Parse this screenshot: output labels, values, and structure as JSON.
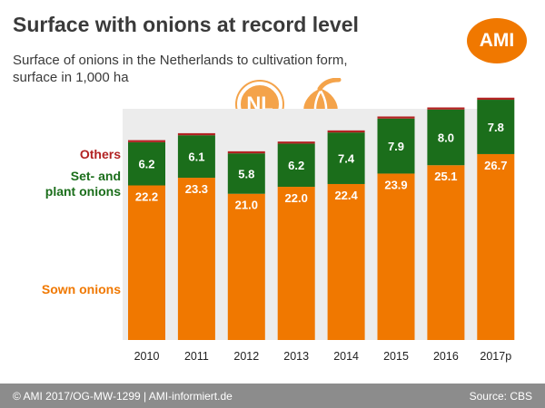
{
  "header": {
    "title": "Surface with onions at record level",
    "subtitle": "Surface of onions in the Netherlands to cultivation form, surface in 1,000 ha",
    "logo_text": "AMI",
    "badge_text": "NL",
    "onion_icon": "onion-icon"
  },
  "footer": {
    "left": "© AMI 2017/OG-MW-1299 | AMI-informiert.de",
    "right": "Source: CBS"
  },
  "colors": {
    "sown": "#f07800",
    "set_plant": "#1b6e1b",
    "others": "#b22222",
    "plot_bg": "#ececec"
  },
  "chart_data": {
    "type": "bar",
    "stacked": true,
    "title": "Surface with onions at record level",
    "subtitle": "Surface of onions in the Netherlands to cultivation form, surface in 1,000 ha",
    "categories": [
      "2010",
      "2011",
      "2012",
      "2013",
      "2014",
      "2015",
      "2016",
      "2017p"
    ],
    "series": [
      {
        "name": "Sown onions",
        "values": [
          22.2,
          23.3,
          21.0,
          22.0,
          22.4,
          23.9,
          25.1,
          26.7
        ],
        "labels": [
          "22.2",
          "23.3",
          "21.0",
          "22.0",
          "22.4",
          "23.9",
          "25.1",
          "26.7"
        ]
      },
      {
        "name": "Set- and plant onions",
        "values": [
          6.2,
          6.1,
          5.8,
          6.2,
          7.4,
          7.9,
          8.0,
          7.8
        ],
        "labels": [
          "6.2",
          "6.1",
          "5.8",
          "6.2",
          "7.4",
          "7.9",
          "8.0",
          "7.8"
        ]
      },
      {
        "name": "Others",
        "values": [
          0.3,
          0.3,
          0.3,
          0.3,
          0.3,
          0.3,
          0.3,
          0.3
        ]
      }
    ],
    "legend": {
      "placement": "left",
      "others": "Others",
      "set_plant_line1": "Set- and",
      "set_plant_line2": "plant onions",
      "sown": "Sown onions"
    },
    "ylim": [
      0,
      40
    ],
    "grid": false
  }
}
